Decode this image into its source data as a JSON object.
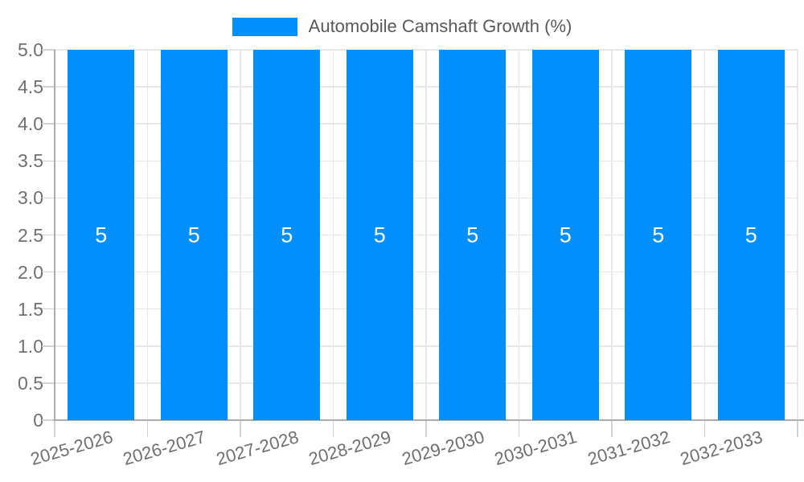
{
  "legend": {
    "label": "Automobile Camshaft Growth (%)",
    "marker_color": "#008FFB"
  },
  "chart_data": {
    "type": "bar",
    "title": "Automobile Camshaft Growth (%)",
    "legend_position": "top",
    "grid": true,
    "categories": [
      "2025-2026",
      "2026-2027",
      "2027-2028",
      "2028-2029",
      "2029-2030",
      "2030-2031",
      "2031-2032",
      "2032-2033"
    ],
    "series": [
      {
        "name": "Automobile Camshaft Growth (%)",
        "values": [
          5,
          5,
          5,
          5,
          5,
          5,
          5,
          5
        ]
      }
    ],
    "data_labels": [
      "5",
      "5",
      "5",
      "5",
      "5",
      "5",
      "5",
      "5"
    ],
    "xlabel": "",
    "ylabel": "",
    "ylim": [
      0,
      5
    ],
    "yticks": [
      {
        "label": "5.0",
        "value": 5.0
      },
      {
        "label": "4.5",
        "value": 4.5
      },
      {
        "label": "4.0",
        "value": 4.0
      },
      {
        "label": "3.5",
        "value": 3.5
      },
      {
        "label": "3.0",
        "value": 3.0
      },
      {
        "label": "2.5",
        "value": 2.5
      },
      {
        "label": "2.0",
        "value": 2.0
      },
      {
        "label": "1.5",
        "value": 1.5
      },
      {
        "label": "1.0",
        "value": 1.0
      },
      {
        "label": "0.5",
        "value": 0.5
      },
      {
        "label": "0",
        "value": 0
      }
    ],
    "colors": {
      "bar": "#008FFB",
      "grid": "#e7e7e7",
      "axis": "#ababab",
      "tick": "#d2d2d2",
      "axis_label": "#6f6f6f",
      "legend_text": "#58595b",
      "data_label": "#ffffff"
    }
  }
}
